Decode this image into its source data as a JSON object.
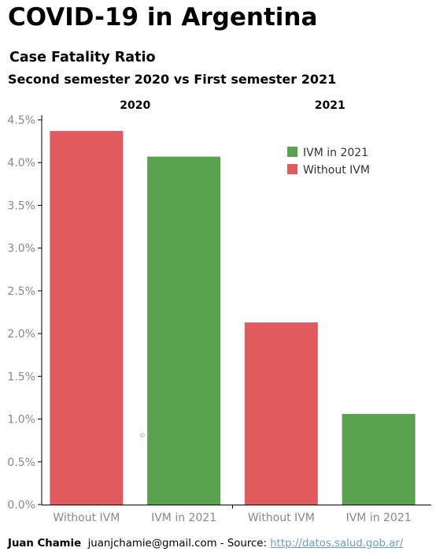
{
  "header": {
    "title": "COVID-19 in Argentina",
    "subtitle": "Case Fatality Ratio",
    "subtitle2": "Second semester 2020 vs First semester 2021"
  },
  "footer": {
    "author": "Juan Chamie",
    "email": "juanjchamie@gmail.com",
    "source_prefix": "- Source:",
    "source_link": "http://datos.salud.gob.ar/"
  },
  "colors": {
    "with_ivm": "#5aa150",
    "without_ivm": "#e05a5e",
    "axis_text": "#888888"
  },
  "chart_data": {
    "type": "bar",
    "panels": [
      "2020",
      "2021"
    ],
    "categories": [
      "Without IVM",
      "IVM in 2021",
      "Without IVM",
      "IVM in 2021"
    ],
    "panel_of_category": [
      "2020",
      "2020",
      "2021",
      "2021"
    ],
    "values": [
      4.37,
      4.07,
      2.13,
      1.06
    ],
    "value_unit": "%",
    "ylim": [
      0,
      4.5
    ],
    "yticks": [
      "0.0%",
      "0.5%",
      "1.0%",
      "1.5%",
      "2.0%",
      "2.5%",
      "3.0%",
      "3.5%",
      "4.0%",
      "4.5%"
    ],
    "ytick_values": [
      0,
      0.5,
      1.0,
      1.5,
      2.0,
      2.5,
      3.0,
      3.5,
      4.0,
      4.5
    ],
    "legend": [
      {
        "label": "IVM in 2021",
        "color": "#5aa150"
      },
      {
        "label": "Without IVM",
        "color": "#e05a5e"
      }
    ],
    "legend_position": "top-right",
    "grid": false
  }
}
